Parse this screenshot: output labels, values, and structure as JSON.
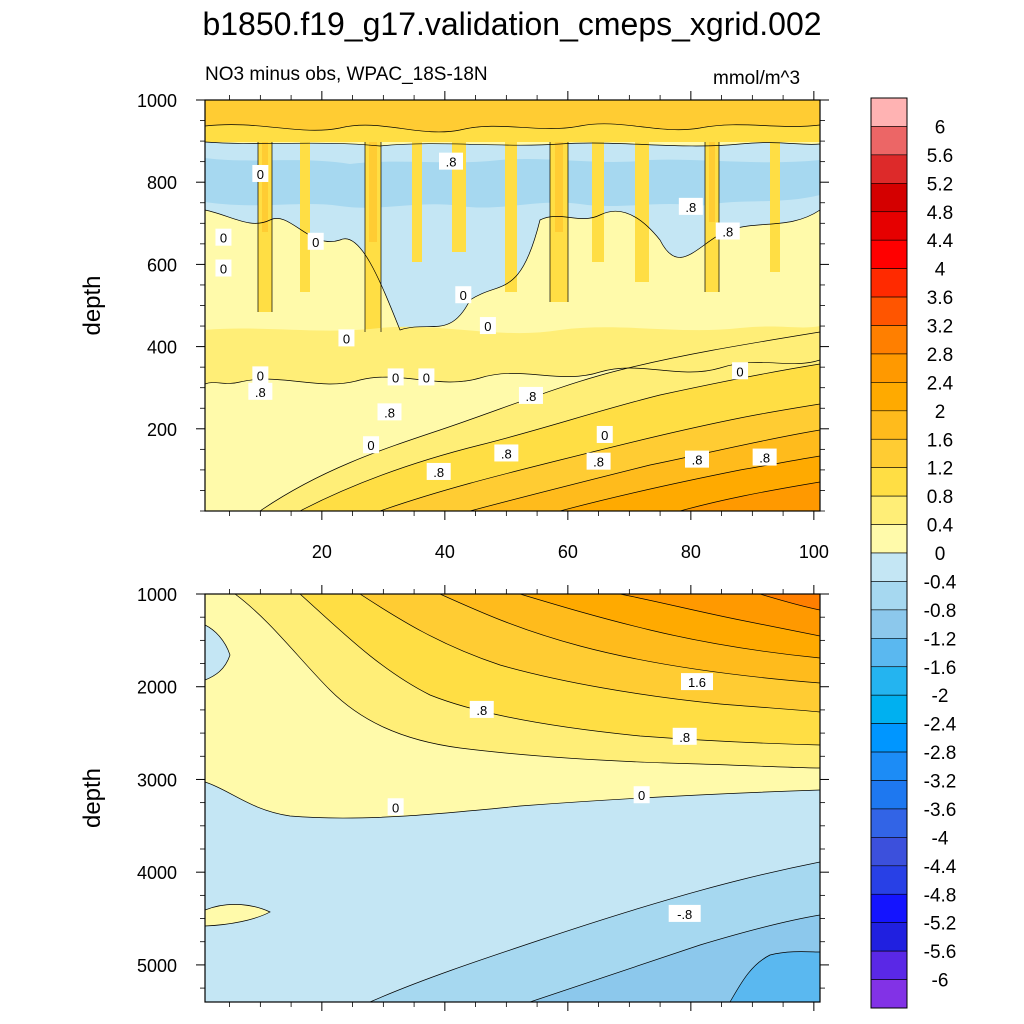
{
  "title": "b1850.f19_g17.validation_cmeps_xgrid.002",
  "subtitle_left": "NO3 minus obs, WPAC_18S-18N",
  "units": "mmol/m^3",
  "chart_data": [
    {
      "type": "heatmap",
      "panel": "upper",
      "variable": "NO3 minus obs",
      "region": "WPAC_18S-18N",
      "xlabel": "",
      "ylabel": "depth",
      "xlim": [
        1,
        101
      ],
      "ylim": [
        1000,
        0
      ],
      "x_ticks": [
        20,
        40,
        60,
        80,
        100
      ],
      "y_ticks": [
        200,
        400,
        600,
        800,
        1000
      ],
      "contour_labels": [
        {
          "text": ".8",
          "x": 39,
          "y": 95
        },
        {
          "text": ".8",
          "x": 50,
          "y": 140
        },
        {
          "text": ".8",
          "x": 65,
          "y": 120
        },
        {
          "text": ".8",
          "x": 81,
          "y": 125
        },
        {
          "text": ".8",
          "x": 92,
          "y": 130
        },
        {
          "text": "0",
          "x": 28,
          "y": 160
        },
        {
          "text": "0",
          "x": 66,
          "y": 185
        },
        {
          "text": ".8",
          "x": 31,
          "y": 240
        },
        {
          "text": ".8",
          "x": 10,
          "y": 290
        },
        {
          "text": ".8",
          "x": 54,
          "y": 280
        },
        {
          "text": "0",
          "x": 10,
          "y": 330
        },
        {
          "text": "0",
          "x": 32,
          "y": 325
        },
        {
          "text": "0",
          "x": 37,
          "y": 325
        },
        {
          "text": "0",
          "x": 88,
          "y": 340
        },
        {
          "text": "0",
          "x": 24,
          "y": 420
        },
        {
          "text": "0",
          "x": 47,
          "y": 450
        },
        {
          "text": "0",
          "x": 43,
          "y": 525
        },
        {
          "text": "0",
          "x": 4,
          "y": 590
        },
        {
          "text": "0",
          "x": 4,
          "y": 665
        },
        {
          "text": "0",
          "x": 19,
          "y": 655
        },
        {
          "text": ".8",
          "x": 86,
          "y": 680
        },
        {
          "text": ".8",
          "x": 80,
          "y": 740
        },
        {
          "text": "0",
          "x": 10,
          "y": 820
        },
        {
          "text": ".8",
          "x": 41,
          "y": 850
        }
      ]
    },
    {
      "type": "heatmap",
      "panel": "lower",
      "variable": "NO3 minus obs",
      "region": "WPAC_18S-18N",
      "xlabel": "",
      "ylabel": "depth",
      "xlim": [
        1,
        101
      ],
      "ylim": [
        1000,
        5400
      ],
      "y_ticks": [
        1000,
        2000,
        3000,
        4000,
        5000
      ],
      "contour_labels": [
        {
          "text": "1.6",
          "x": 81,
          "y": 1950
        },
        {
          "text": ".8",
          "x": 46,
          "y": 2250
        },
        {
          "text": ".8",
          "x": 79,
          "y": 2540
        },
        {
          "text": "0",
          "x": 72,
          "y": 3170
        },
        {
          "text": "0",
          "x": 32,
          "y": 3300
        },
        {
          "text": "-.8",
          "x": 79,
          "y": 4450
        }
      ]
    }
  ],
  "colorbar": {
    "levels": [
      "6",
      "5.6",
      "5.2",
      "4.8",
      "4.4",
      "4",
      "3.6",
      "3.2",
      "2.8",
      "2.4",
      "2",
      "1.6",
      "1.2",
      "0.8",
      "0.4",
      "0",
      "-0.4",
      "-0.8",
      "-1.2",
      "-1.6",
      "-2",
      "-2.4",
      "-2.8",
      "-3.2",
      "-3.6",
      "-4",
      "-4.4",
      "-4.8",
      "-5.2",
      "-5.6",
      "-6"
    ],
    "colors": [
      "#ffb3b3",
      "#ec6666",
      "#dd2a2a",
      "#d40000",
      "#e60000",
      "#ff0000",
      "#ff2a00",
      "#ff5500",
      "#ff7f00",
      "#ff9900",
      "#ffaa00",
      "#ffbb1c",
      "#ffcc33",
      "#ffde44",
      "#ffee77",
      "#fffaaa",
      "#c4e6f4",
      "#a6d8f0",
      "#8cc8ec",
      "#5ab8f0",
      "#24b4f0",
      "#00b0f0",
      "#0096ff",
      "#1c8cf6",
      "#1e78f0",
      "#3264e6",
      "#3c50dc",
      "#2840e6",
      "#1414ff",
      "#2020e0",
      "#5a28e6",
      "#8232e6"
    ]
  },
  "colors": {
    "neg_light": "#c4e6f4",
    "neg_mid": "#a6d8f0",
    "neg_strong": "#8cc8ec",
    "neg_deep": "#5ab8f0",
    "zero_pos": "#fffaaa",
    "pos_04": "#ffee77",
    "pos_08": "#ffde44",
    "pos_12": "#ffcc33",
    "pos_16": "#ffbb1c",
    "pos_20": "#ffaa00",
    "pos_24": "#ff9900"
  }
}
